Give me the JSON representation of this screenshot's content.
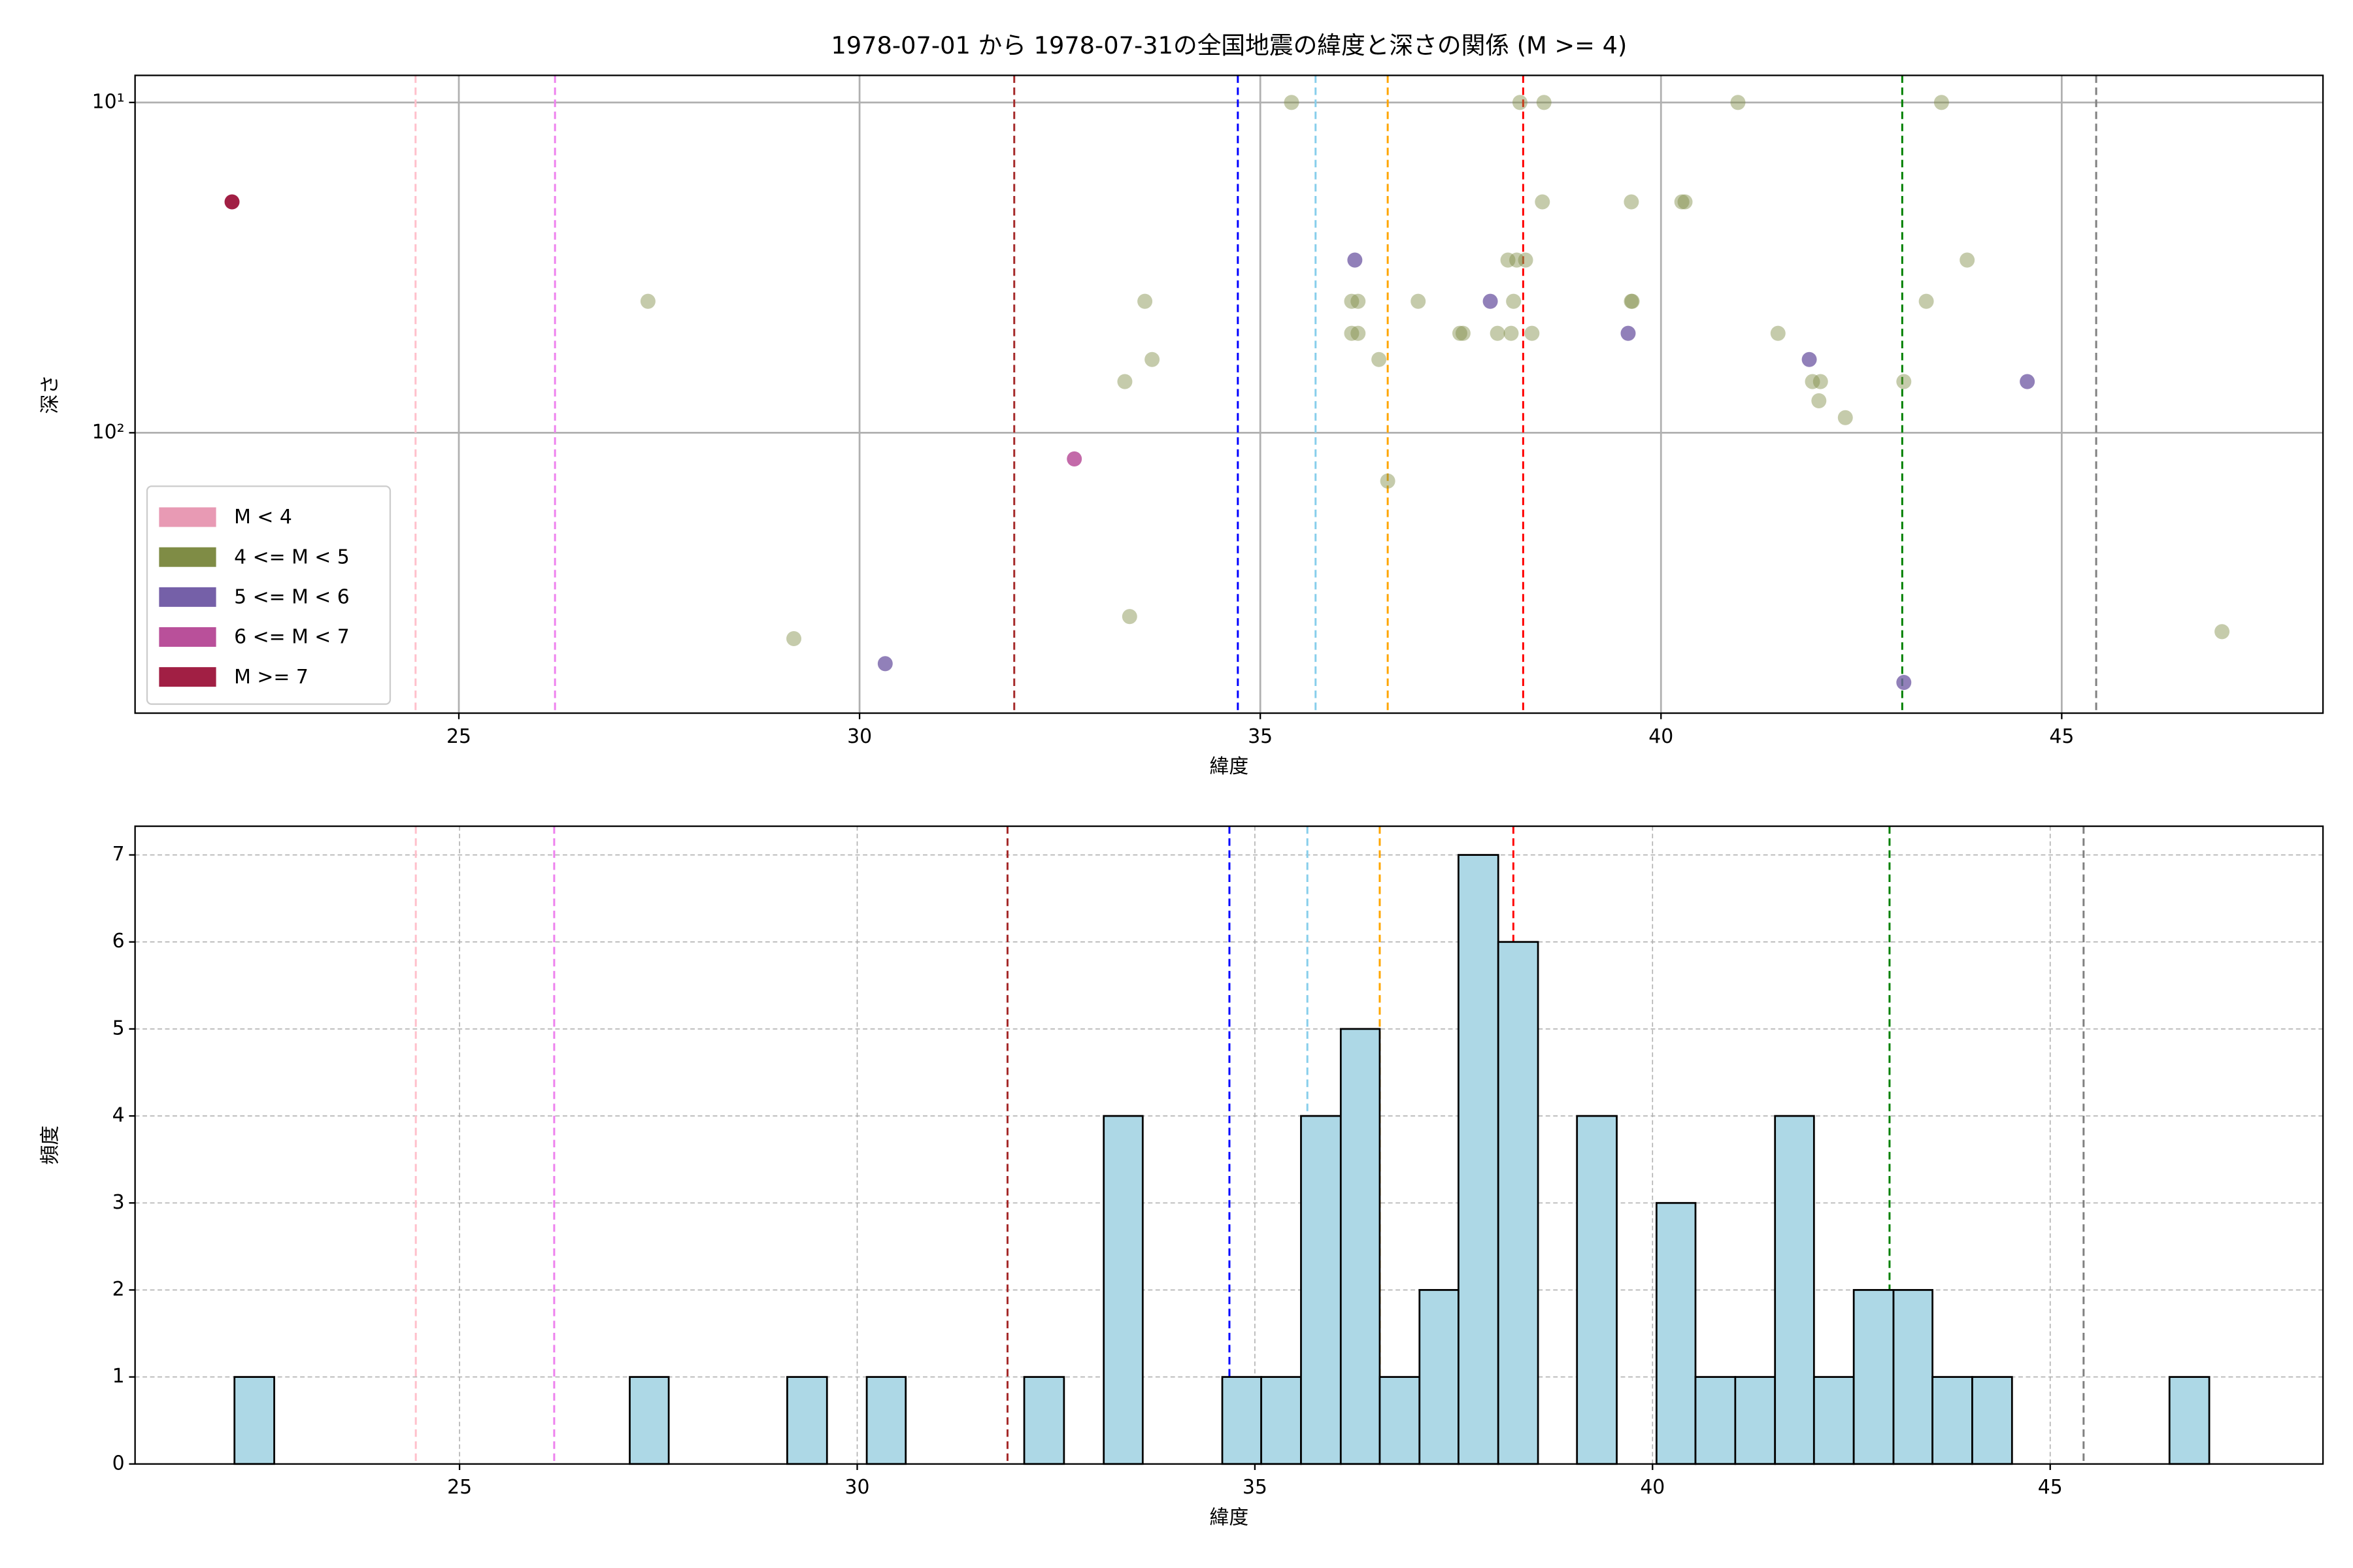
{
  "chart_data": [
    {
      "type": "scatter",
      "title": "1978-07-01 から 1978-07-31の全国地震の緯度と深さの関係 (M >= 4)",
      "xlabel": "緯度",
      "ylabel": "深さ",
      "xlim": [
        20.96,
        48.26
      ],
      "ylim": [
        706,
        8.28
      ],
      "ylog": true,
      "xticks": [
        25,
        30,
        35,
        40,
        45
      ],
      "yticks": [
        {
          "value": 10,
          "label": "10¹"
        },
        {
          "value": 100,
          "label": "10²"
        }
      ],
      "grid": true,
      "grid_style": "solid",
      "legend": "lower left",
      "vlines": [
        {
          "value": 24.46,
          "color": "pink"
        },
        {
          "value": 26.2,
          "color": "violet"
        },
        {
          "value": 31.93,
          "color": "brown"
        },
        {
          "value": 34.72,
          "color": "blue"
        },
        {
          "value": 35.69,
          "color": "skyblue"
        },
        {
          "value": 36.59,
          "color": "orange"
        },
        {
          "value": 38.28,
          "color": "red"
        },
        {
          "value": 43.01,
          "color": "green"
        },
        {
          "value": 45.43,
          "color": "gray"
        }
      ],
      "series": [
        {
          "name": "M < 4",
          "color": "#e89ab4",
          "alpha": 0.5,
          "x": [],
          "values": []
        },
        {
          "name": "4 <= M < 5",
          "color": "#7f8c45",
          "alpha": 0.45,
          "x": [
            27.36,
            29.18,
            33.31,
            33.37,
            33.56,
            33.65,
            35.39,
            36.14,
            36.22,
            36.14,
            36.22,
            36.48,
            36.59,
            36.97,
            37.49,
            37.53,
            37.96,
            38.09,
            38.13,
            38.16,
            38.2,
            38.24,
            38.31,
            38.39,
            38.52,
            38.54,
            39.63,
            39.63,
            39.64,
            40.26,
            40.3,
            40.96,
            41.46,
            41.89,
            41.99,
            41.97,
            42.3,
            43.03,
            43.31,
            43.5,
            43.82,
            47.0
          ],
          "values": [
            40,
            420,
            70,
            360,
            40,
            60,
            10,
            40,
            40,
            50,
            50,
            60,
            140,
            40,
            50,
            50,
            50,
            30,
            50,
            40,
            30,
            10,
            30,
            50,
            20,
            10,
            20,
            40,
            40,
            20,
            20,
            10,
            50,
            70,
            70,
            80,
            90,
            70,
            40,
            10,
            30,
            400
          ]
        },
        {
          "name": "5 <= M < 6",
          "color": "#7560a8",
          "alpha": 0.8,
          "x": [
            30.32,
            36.18,
            37.87,
            39.59,
            41.85,
            43.03,
            44.57
          ],
          "values": [
            500,
            30,
            40,
            50,
            60,
            570,
            70
          ]
        },
        {
          "name": "6 <= M < 7",
          "color": "#b9509a",
          "alpha": 0.85,
          "x": [
            32.68
          ],
          "values": [
            120
          ]
        },
        {
          "name": "M >= 7",
          "color": "#a11f44",
          "alpha": 1,
          "x": [
            22.17
          ],
          "values": [
            20
          ]
        }
      ]
    },
    {
      "type": "histogram",
      "xlabel": "緯度",
      "ylabel": "頻度",
      "xlim": [
        20.92,
        48.43
      ],
      "ylim": [
        0,
        7.33
      ],
      "xticks": [
        25,
        30,
        35,
        40,
        45
      ],
      "yticks": [
        0,
        1,
        2,
        3,
        4,
        5,
        6,
        7
      ],
      "grid": true,
      "grid_style": "dashed",
      "color": "#add8e6",
      "edgecolor": "#000000",
      "vlines": [
        {
          "value": 24.45,
          "color": "pink"
        },
        {
          "value": 26.19,
          "color": "violet"
        },
        {
          "value": 31.89,
          "color": "brown"
        },
        {
          "value": 34.68,
          "color": "blue"
        },
        {
          "value": 35.66,
          "color": "skyblue"
        },
        {
          "value": 36.57,
          "color": "orange"
        },
        {
          "value": 38.25,
          "color": "red"
        },
        {
          "value": 42.98,
          "color": "green"
        },
        {
          "value": 45.42,
          "color": "gray"
        }
      ],
      "bins": [
        22.17,
        22.67,
        23.16,
        23.66,
        24.16,
        24.65,
        25.15,
        25.65,
        26.14,
        26.64,
        27.14,
        27.63,
        28.13,
        28.63,
        29.12,
        29.62,
        30.12,
        30.61,
        31.11,
        31.61,
        32.1,
        32.6,
        33.1,
        33.59,
        34.09,
        34.59,
        35.08,
        35.58,
        36.08,
        36.57,
        37.07,
        37.56,
        38.06,
        38.56,
        39.05,
        39.55,
        40.05,
        40.54,
        41.04,
        41.54,
        42.03,
        42.53,
        43.03,
        43.52,
        44.02,
        44.52,
        45.01,
        45.51,
        46.01,
        46.5,
        47.0
      ],
      "values": [
        1,
        0,
        0,
        0,
        0,
        0,
        0,
        0,
        0,
        0,
        1,
        0,
        0,
        0,
        1,
        0,
        1,
        0,
        0,
        0,
        1,
        0,
        4,
        0,
        0,
        1,
        1,
        4,
        5,
        1,
        2,
        7,
        6,
        0,
        4,
        0,
        3,
        1,
        1,
        4,
        1,
        2,
        2,
        1,
        1,
        0,
        0,
        0,
        0,
        1
      ]
    }
  ]
}
